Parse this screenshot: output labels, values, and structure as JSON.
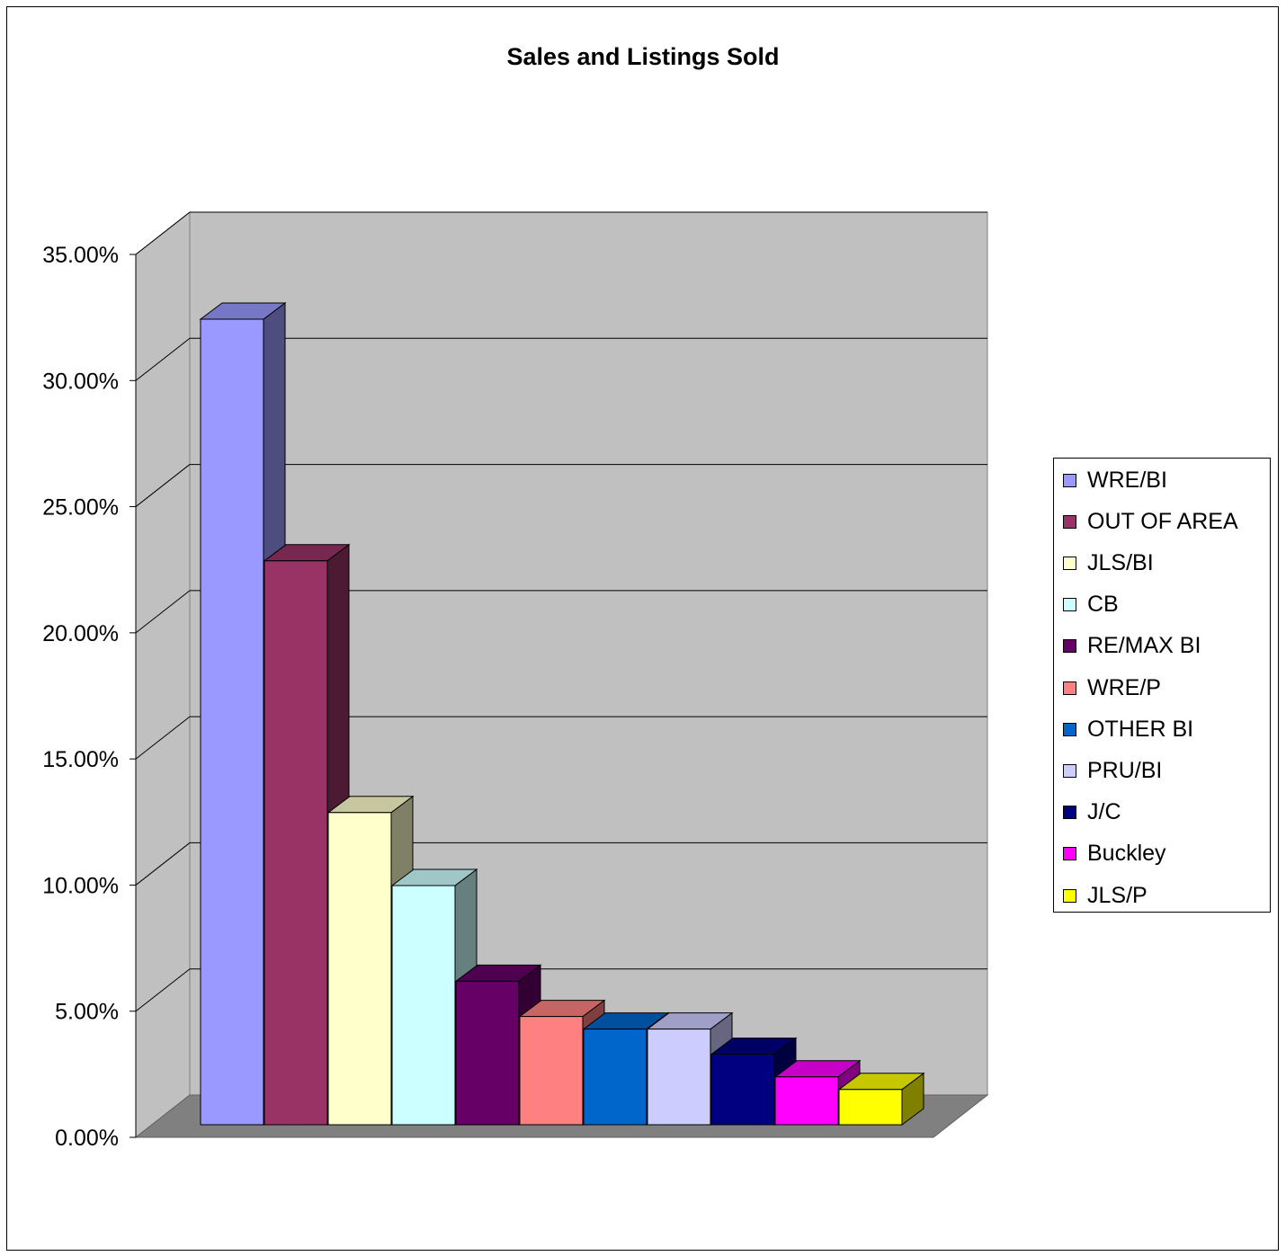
{
  "chart_data": {
    "type": "bar",
    "style": "3d-column",
    "title": "Sales and Listings Sold",
    "xlabel": "",
    "ylabel": "",
    "ylim": [
      0,
      0.35
    ],
    "y_ticks": [
      0,
      0.05,
      0.1,
      0.15,
      0.2,
      0.25,
      0.3,
      0.35
    ],
    "y_tick_labels": [
      "0.00%",
      "5.00%",
      "10.00%",
      "15.00%",
      "20.00%",
      "25.00%",
      "30.00%",
      "35.00%"
    ],
    "grid": true,
    "legend_position": "right",
    "series": [
      {
        "name": "WRE/BI",
        "value": 0.32,
        "color": "#9999ff"
      },
      {
        "name": "OUT OF AREA",
        "value": 0.224,
        "color": "#993366"
      },
      {
        "name": "JLS/BI",
        "value": 0.124,
        "color": "#ffffcc"
      },
      {
        "name": "CB",
        "value": 0.095,
        "color": "#ccffff"
      },
      {
        "name": "RE/MAX BI",
        "value": 0.057,
        "color": "#660066"
      },
      {
        "name": "WRE/P",
        "value": 0.043,
        "color": "#ff8080"
      },
      {
        "name": "OTHER BI",
        "value": 0.038,
        "color": "#0066cc"
      },
      {
        "name": "PRU/BI",
        "value": 0.038,
        "color": "#ccccff"
      },
      {
        "name": "J/C",
        "value": 0.028,
        "color": "#000080"
      },
      {
        "name": "Buckley",
        "value": 0.019,
        "color": "#ff00ff"
      },
      {
        "name": "JLS/P",
        "value": 0.014,
        "color": "#ffff00"
      }
    ],
    "colors": {
      "wall": "#c0c0c0",
      "floor": "#808080",
      "gridline": "#000000"
    }
  }
}
